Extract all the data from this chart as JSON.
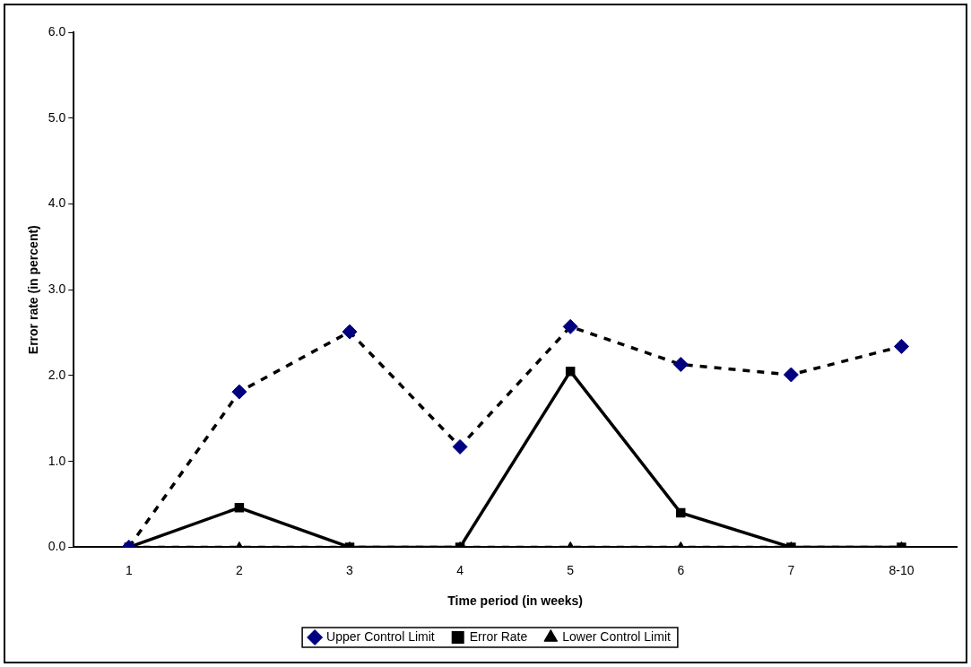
{
  "chart_data": {
    "type": "line",
    "xlabel": "Time period (in weeks)",
    "ylabel": "Error rate (in percent)",
    "categories": [
      "1",
      "2",
      "3",
      "4",
      "5",
      "6",
      "7",
      "8-10"
    ],
    "series": [
      {
        "name": "Upper Control Limit",
        "color": "#000080",
        "marker": "diamond",
        "line_style": "dashed",
        "values": [
          0,
          1.81,
          2.51,
          1.17,
          2.57,
          2.13,
          2.01,
          2.34
        ]
      },
      {
        "name": "Error Rate",
        "color": "#000000",
        "marker": "square",
        "line_style": "solid",
        "values": [
          0,
          0.46,
          0,
          0,
          2.05,
          0.4,
          0,
          0
        ]
      },
      {
        "name": "Lower Control Limit",
        "color": "#000000",
        "marker": "triangle",
        "line_style": "dashed",
        "values": [
          0,
          0,
          0,
          0,
          0,
          0,
          0,
          0
        ]
      }
    ],
    "ylim": [
      0,
      6
    ],
    "yticks": [
      {
        "value": 0,
        "label": "0.0"
      },
      {
        "value": 1,
        "label": "1.0"
      },
      {
        "value": 2,
        "label": "2.0"
      },
      {
        "value": 3,
        "label": "3.0"
      },
      {
        "value": 4,
        "label": "4.0"
      },
      {
        "value": 5,
        "label": "5.0"
      },
      {
        "value": 6,
        "label": "6.0"
      }
    ],
    "grid": false,
    "legend": "bottom"
  }
}
